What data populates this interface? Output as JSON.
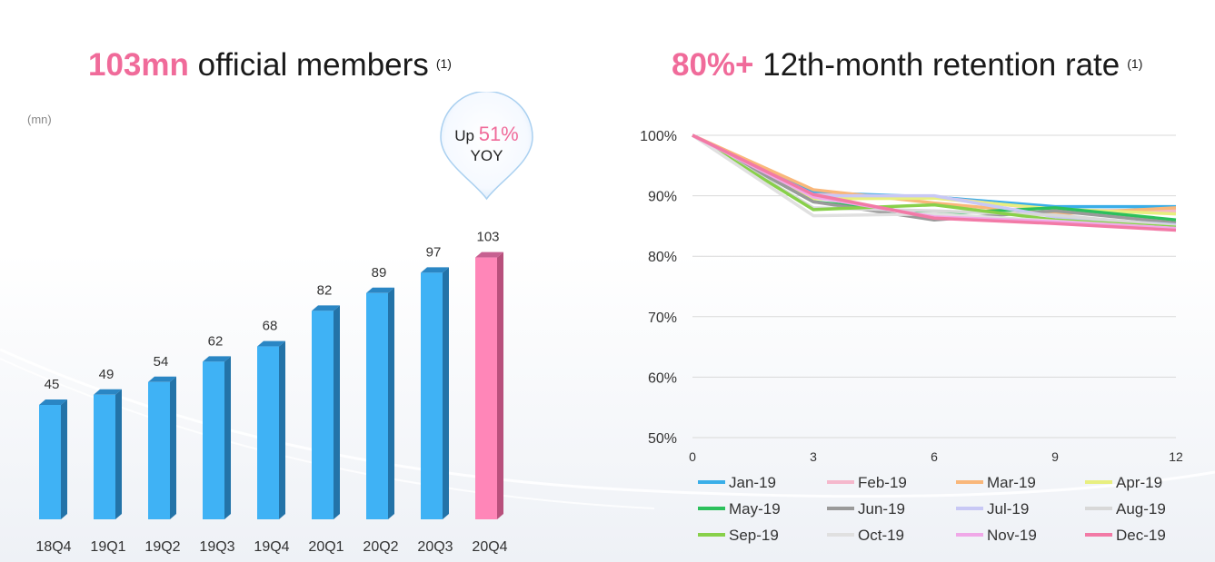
{
  "left_panel": {
    "title_highlight": "103mn",
    "title_rest": "official members",
    "title_note": "(1)",
    "unit": "(mn)",
    "callout": {
      "prefix": "Up",
      "value": "51%",
      "suffix": "YOY"
    }
  },
  "right_panel": {
    "title_highlight": "80%+",
    "title_rest": "12th-month retention rate",
    "title_note": "(1)"
  },
  "colors": {
    "highlight": "#f06b9a",
    "bar": "#3fb2f5",
    "bar_highlight": "#ff86b8"
  },
  "chart_data": [
    {
      "type": "bar",
      "categories": [
        "18Q4",
        "19Q1",
        "19Q2",
        "19Q3",
        "19Q4",
        "20Q1",
        "20Q2",
        "20Q3",
        "20Q4"
      ],
      "values": [
        45,
        49,
        54,
        62,
        68,
        82,
        89,
        97,
        103
      ],
      "highlight_index": 8,
      "title": "103mn official members",
      "ylabel": "(mn)",
      "ylim": [
        0,
        140
      ],
      "grid": false,
      "data_labels": true
    },
    {
      "type": "line",
      "x": [
        0,
        3,
        6,
        9,
        12
      ],
      "xticks": [
        "0",
        "3",
        "6",
        "9",
        "12"
      ],
      "yticks": [
        "50%",
        "60%",
        "70%",
        "80%",
        "90%",
        "100%"
      ],
      "ylim": [
        50,
        100
      ],
      "grid": true,
      "legend_position": "bottom",
      "title": "80%+ 12th-month retention rate",
      "series": [
        {
          "name": "Jan-19",
          "color": "#3aaee8",
          "values": [
            100,
            90.5,
            89.8,
            88.2,
            88.2
          ]
        },
        {
          "name": "Feb-19",
          "color": "#f5b8cc",
          "values": [
            100,
            90.2,
            89.8,
            87.6,
            87.5
          ]
        },
        {
          "name": "Mar-19",
          "color": "#f9b77a",
          "values": [
            100,
            91.0,
            88.8,
            87.0,
            88.0
          ]
        },
        {
          "name": "Apr-19",
          "color": "#e8ef80",
          "values": [
            100,
            89.5,
            89.6,
            87.8,
            87.0
          ]
        },
        {
          "name": "May-19",
          "color": "#2cc05c",
          "values": [
            100,
            89.0,
            87.0,
            88.0,
            86.0
          ]
        },
        {
          "name": "Jun-19",
          "color": "#9a9a9a",
          "values": [
            100,
            89.0,
            86.0,
            87.5,
            85.5
          ]
        },
        {
          "name": "Jul-19",
          "color": "#c8c8f5",
          "values": [
            100,
            90.0,
            90.0,
            86.5,
            85.2
          ]
        },
        {
          "name": "Aug-19",
          "color": "#d8d8d8",
          "values": [
            100,
            88.0,
            87.5,
            86.8,
            85.0
          ]
        },
        {
          "name": "Sep-19",
          "color": "#88d04a",
          "values": [
            100,
            87.7,
            88.5,
            86.0,
            84.8
          ]
        },
        {
          "name": "Oct-19",
          "color": "#e0e0e0",
          "values": [
            100,
            86.7,
            87.0,
            85.8,
            84.6
          ]
        },
        {
          "name": "Nov-19",
          "color": "#f0a8e8",
          "values": [
            100,
            89.8,
            86.5,
            85.7,
            84.6
          ]
        },
        {
          "name": "Dec-19",
          "color": "#f27aa6",
          "values": [
            100,
            90.2,
            86.3,
            85.4,
            84.3
          ]
        }
      ]
    }
  ]
}
